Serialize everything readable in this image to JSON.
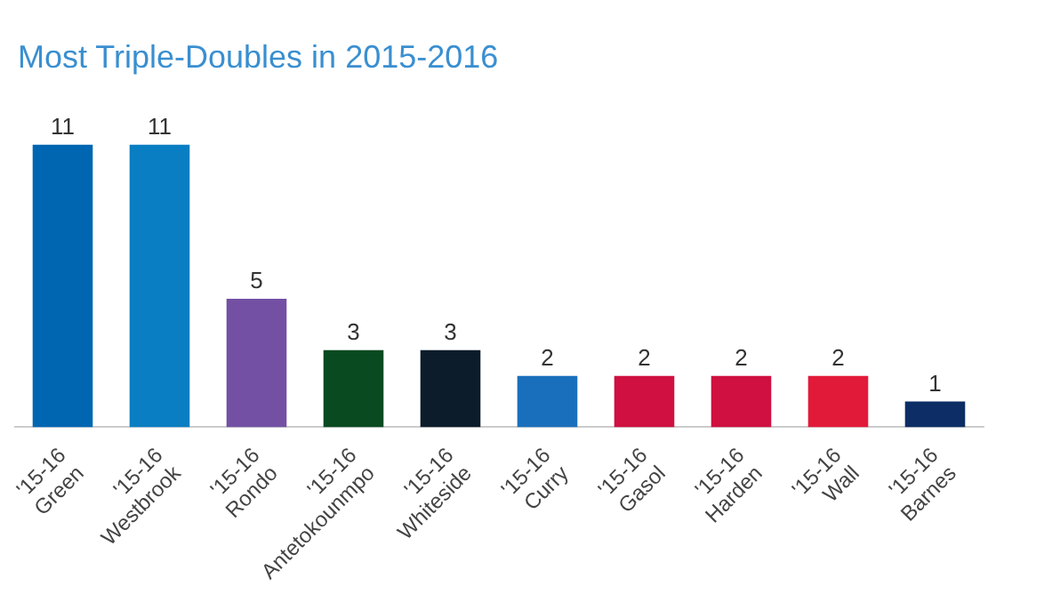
{
  "chart_data": {
    "type": "bar",
    "title": "Most Triple-Doubles in 2015-2016",
    "categories": [
      "'15-16\nGreen",
      "'15-16\nWestbrook",
      "'15-16\nRondo",
      "'15-16\nAntetokounmpo",
      "'15-16\nWhiteside",
      "'15-16\nCurry",
      "'15-16\nGasol",
      "'15-16\nHarden",
      "'15-16\nWall",
      "'15-16\nBarnes"
    ],
    "values": [
      11,
      11,
      5,
      3,
      3,
      2,
      2,
      2,
      2,
      1
    ],
    "colors": [
      "#0066b2",
      "#0a7ec2",
      "#7350a4",
      "#0a4a20",
      "#0c1c2a",
      "#1a6fbc",
      "#cf1040",
      "#cf1040",
      "#e21a3a",
      "#0d2d66"
    ],
    "data_labels": true,
    "grid": false,
    "legend": false
  }
}
